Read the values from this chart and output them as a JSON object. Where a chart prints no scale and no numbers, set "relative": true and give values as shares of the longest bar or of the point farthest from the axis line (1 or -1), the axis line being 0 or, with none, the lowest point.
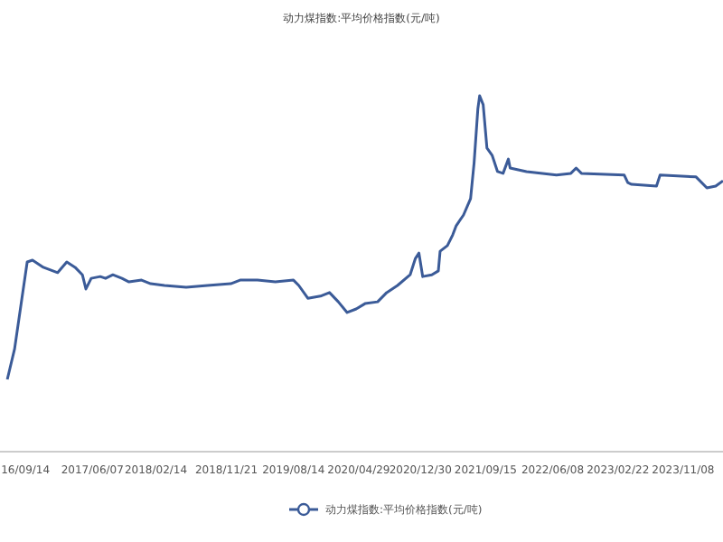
{
  "chart_data": {
    "type": "line",
    "title": "动力煤指数:平均价格指数(元/吨)",
    "relative": true,
    "legend": "bottom",
    "grid": false,
    "xlim": [
      "2016-06-05",
      "2024-04-14"
    ],
    "xticks": [
      {
        "value": "2016-09-14",
        "label": "16/09/14"
      },
      {
        "value": "2017-06-07",
        "label": "2017/06/07"
      },
      {
        "value": "2018-02-14",
        "label": "2018/02/14"
      },
      {
        "value": "2018-11-21",
        "label": "2018/11/21"
      },
      {
        "value": "2019-08-14",
        "label": "2019/08/14"
      },
      {
        "value": "2020-04-29",
        "label": "2020/04/29"
      },
      {
        "value": "2020-12-30",
        "label": "2020/12/30"
      },
      {
        "value": "2021-09-15",
        "label": "2021/09/15"
      },
      {
        "value": "2022-06-08",
        "label": "2022/06/08"
      },
      {
        "value": "2023-02-22",
        "label": "2023/02/22"
      },
      {
        "value": "2023-11-08",
        "label": "2023/11/08"
      }
    ],
    "x": [
      "2016-07-04",
      "2016-08-02",
      "2016-08-31",
      "2016-09-21",
      "2016-10-12",
      "2016-11-24",
      "2017-01-20",
      "2017-02-25",
      "2017-03-30",
      "2017-04-28",
      "2017-05-12",
      "2017-06-02",
      "2017-07-08",
      "2017-07-29",
      "2017-08-27",
      "2017-10-02",
      "2017-10-30",
      "2017-12-19",
      "2018-01-24",
      "2018-03-20",
      "2018-06-14",
      "2018-09-07",
      "2018-12-08",
      "2019-01-14",
      "2019-03-24",
      "2019-06-03",
      "2019-08-14",
      "2019-09-04",
      "2019-10-10",
      "2019-11-29",
      "2020-01-04",
      "2020-02-08",
      "2020-03-14",
      "2020-04-19",
      "2020-05-24",
      "2020-07-13",
      "2020-08-18",
      "2020-09-30",
      "2020-11-19",
      "2020-12-10",
      "2020-12-24",
      "2021-01-08",
      "2021-02-13",
      "2021-03-11",
      "2021-03-18",
      "2021-04-16",
      "2021-05-07",
      "2021-05-21",
      "2021-06-19",
      "2021-07-17",
      "2021-07-31",
      "2021-08-15",
      "2021-08-22",
      "2021-09-05",
      "2021-09-20",
      "2021-10-11",
      "2021-11-01",
      "2021-11-23",
      "2021-12-14",
      "2021-12-21",
      "2022-02-24",
      "2022-06-23",
      "2022-08-19",
      "2022-09-09",
      "2022-09-30",
      "2023-03-19",
      "2023-04-02",
      "2023-04-17",
      "2023-07-25",
      "2023-08-08",
      "2023-12-29",
      "2024-02-10",
      "2024-03-16",
      "2024-04-14"
    ],
    "series": [
      {
        "name": "动力煤指数:平均价格指数(元/吨)",
        "color": "#3b5b98",
        "values": [
          0.203,
          0.289,
          0.431,
          0.533,
          0.538,
          0.518,
          0.503,
          0.533,
          0.518,
          0.497,
          0.457,
          0.487,
          0.492,
          0.487,
          0.497,
          0.487,
          0.477,
          0.482,
          0.472,
          0.467,
          0.462,
          0.467,
          0.472,
          0.482,
          0.482,
          0.477,
          0.482,
          0.467,
          0.431,
          0.437,
          0.447,
          0.421,
          0.391,
          0.401,
          0.416,
          0.421,
          0.447,
          0.467,
          0.497,
          0.543,
          0.558,
          0.492,
          0.497,
          0.508,
          0.563,
          0.579,
          0.609,
          0.635,
          0.665,
          0.711,
          0.812,
          0.964,
          1,
          0.975,
          0.853,
          0.832,
          0.787,
          0.782,
          0.822,
          0.797,
          0.787,
          0.777,
          0.782,
          0.797,
          0.782,
          0.777,
          0.756,
          0.751,
          0.746,
          0.777,
          0.772,
          0.741,
          0.746,
          0.761
        ]
      }
    ]
  }
}
